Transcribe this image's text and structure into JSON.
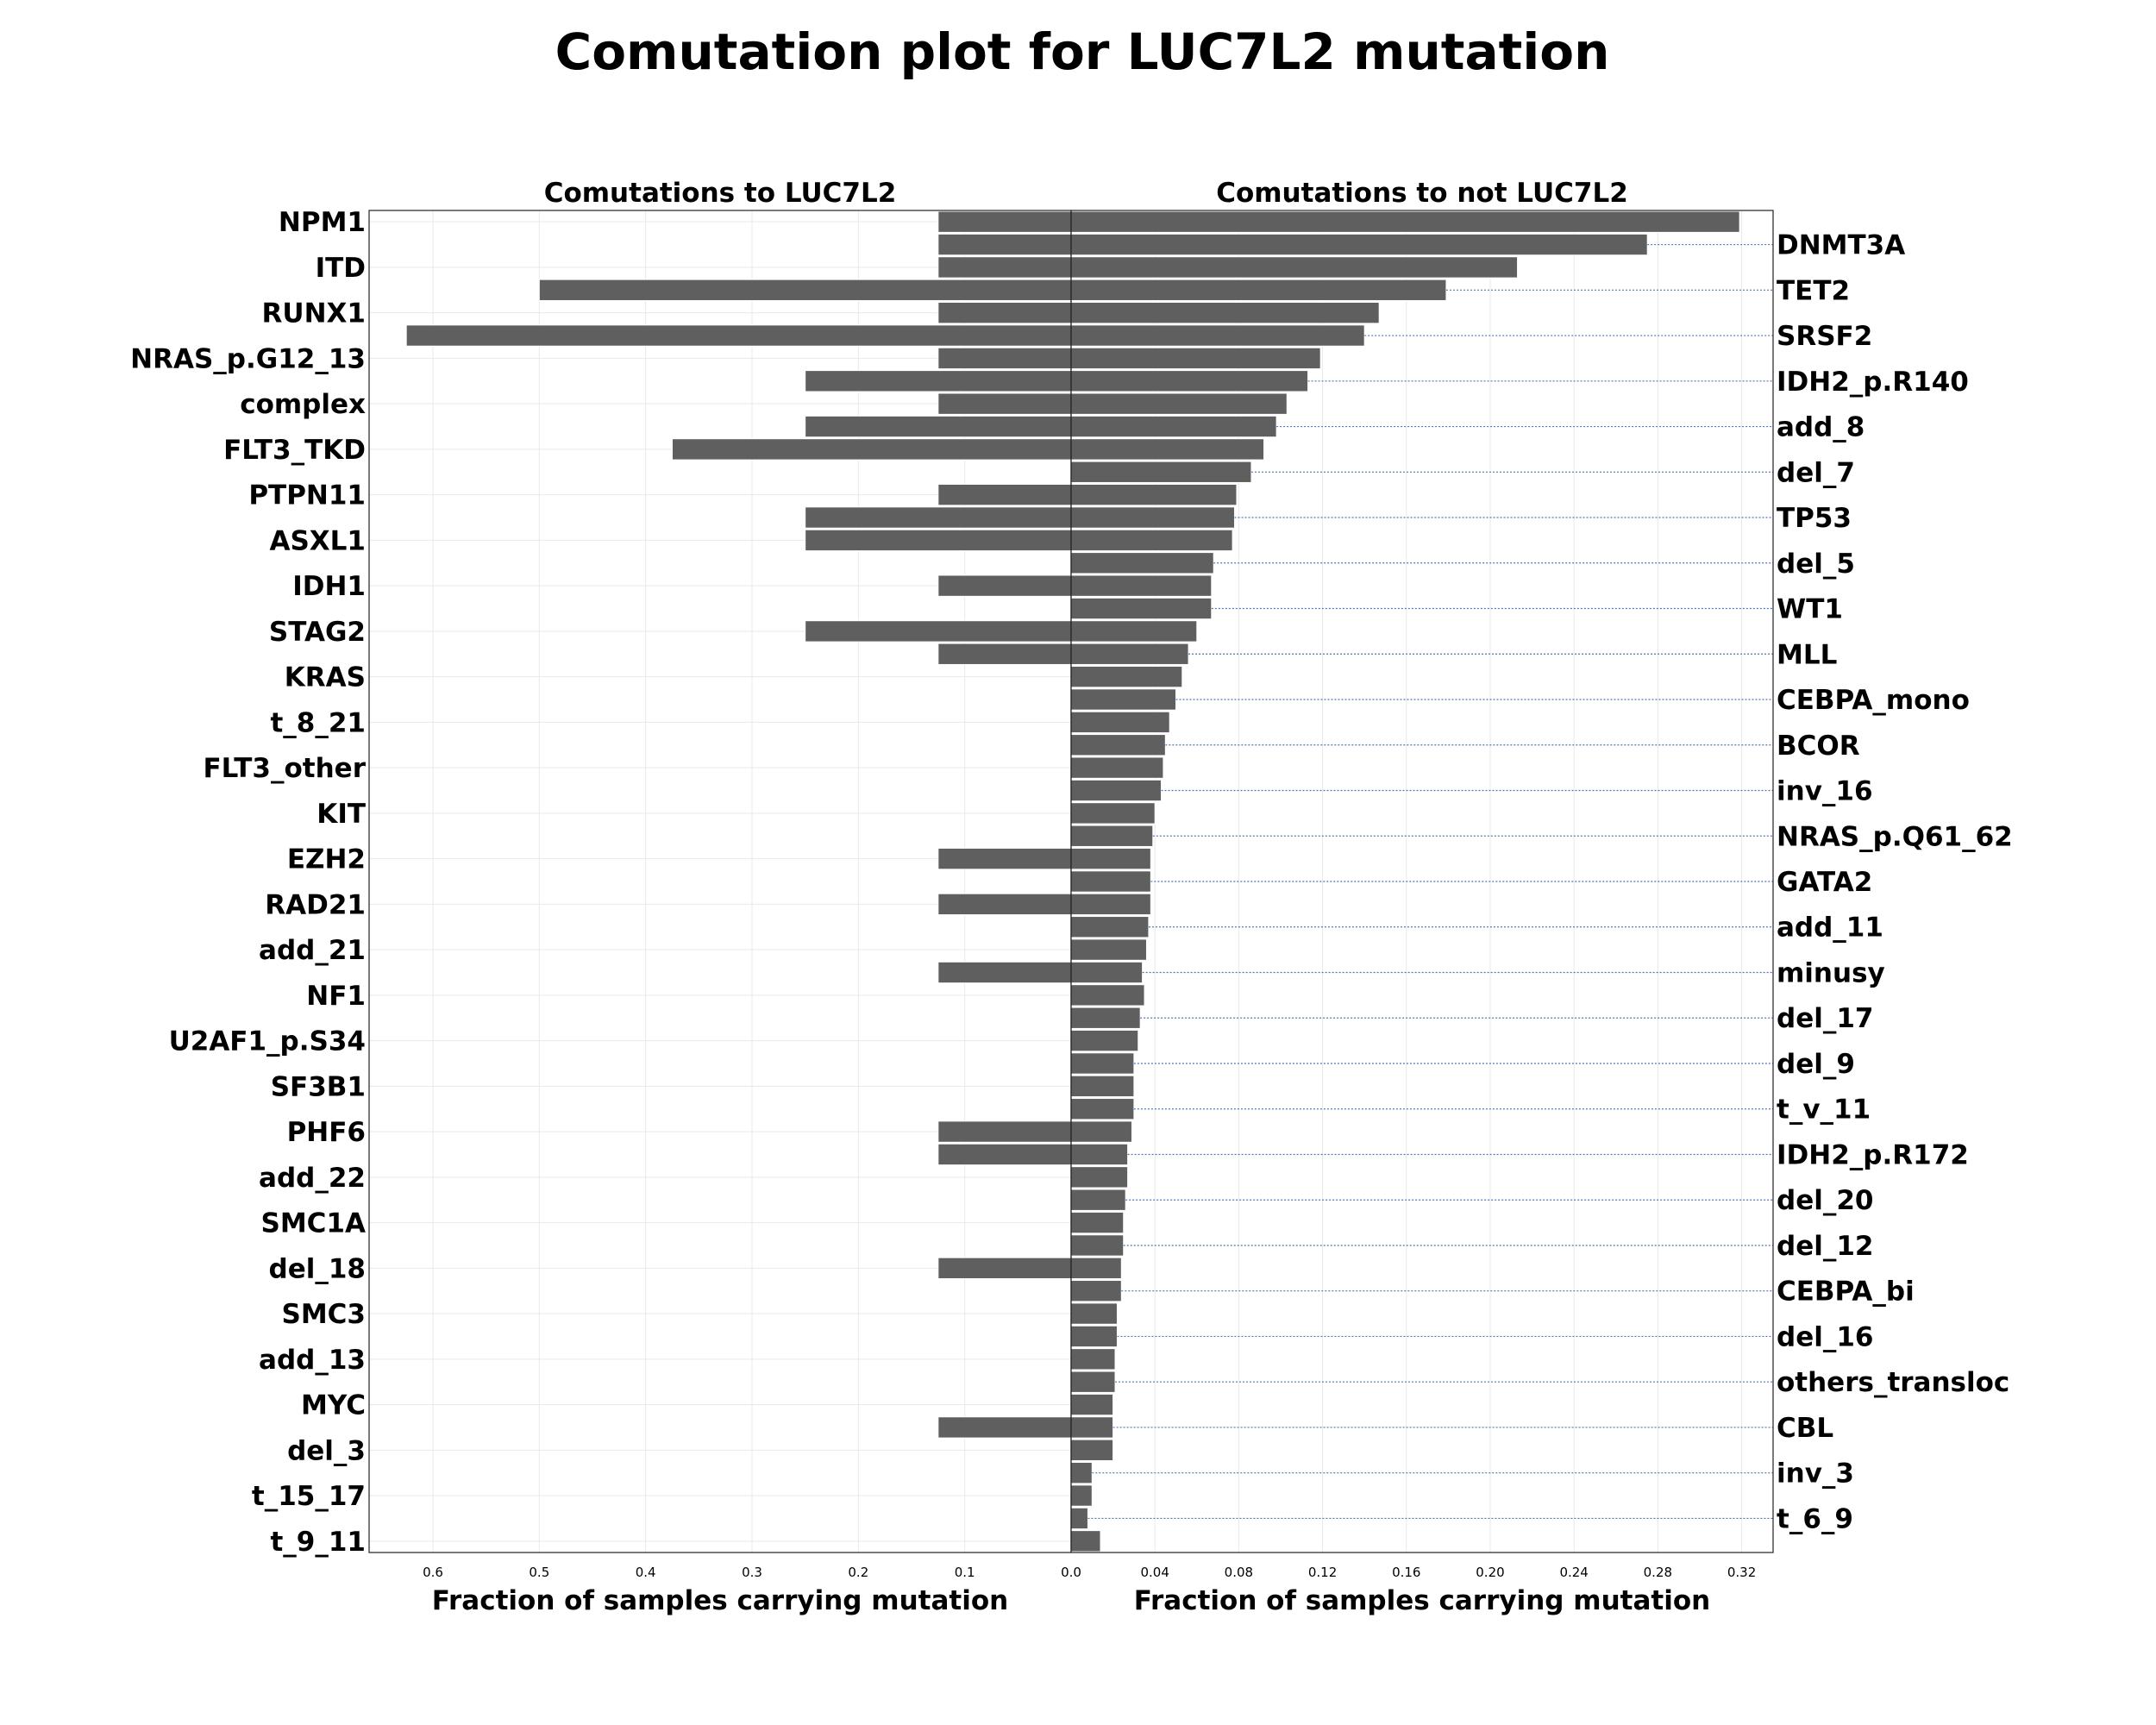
{
  "title": "Comutation plot for LUC7L2 mutation",
  "chart_data": {
    "type": "bar",
    "layout": "back-to-back horizontal bars",
    "categories": [
      "NPM1",
      "DNMT3A",
      "ITD",
      "TET2",
      "RUNX1",
      "SRSF2",
      "NRAS_p.G12_13",
      "IDH2_p.R140",
      "complex",
      "add_8",
      "FLT3_TKD",
      "del_7",
      "PTPN11",
      "TP53",
      "ASXL1",
      "del_5",
      "IDH1",
      "WT1",
      "STAG2",
      "MLL",
      "KRAS",
      "CEBPA_mono",
      "t_8_21",
      "BCOR",
      "FLT3_other",
      "inv_16",
      "KIT",
      "NRAS_p.Q61_62",
      "EZH2",
      "GATA2",
      "RAD21",
      "add_11",
      "add_21",
      "minusy",
      "NF1",
      "del_17",
      "U2AF1_p.S34",
      "del_9",
      "SF3B1",
      "t_v_11",
      "PHF6",
      "IDH2_p.R172",
      "add_22",
      "del_20",
      "SMC1A",
      "del_12",
      "del_18",
      "CEBPA_bi",
      "SMC3",
      "del_16",
      "add_13",
      "others_transloc",
      "MYC",
      "CBL",
      "del_3",
      "inv_3",
      "t_15_17",
      "t_6_9",
      "t_9_11"
    ],
    "left_labels": [
      "NPM1",
      "ITD",
      "RUNX1",
      "NRAS_p.G12_13",
      "complex",
      "FLT3_TKD",
      "PTPN11",
      "ASXL1",
      "IDH1",
      "STAG2",
      "KRAS",
      "t_8_21",
      "FLT3_other",
      "KIT",
      "EZH2",
      "RAD21",
      "add_21",
      "NF1",
      "U2AF1_p.S34",
      "SF3B1",
      "PHF6",
      "add_22",
      "SMC1A",
      "del_18",
      "SMC3",
      "add_13",
      "MYC",
      "del_3",
      "t_15_17",
      "t_9_11"
    ],
    "right_labels": [
      "DNMT3A",
      "TET2",
      "SRSF2",
      "IDH2_p.R140",
      "add_8",
      "del_7",
      "TP53",
      "del_5",
      "WT1",
      "MLL",
      "CEBPA_mono",
      "BCOR",
      "inv_16",
      "NRAS_p.Q61_62",
      "GATA2",
      "add_11",
      "minusy",
      "del_17",
      "del_9",
      "t_v_11",
      "IDH2_p.R172",
      "del_20",
      "del_12",
      "CEBPA_bi",
      "del_16",
      "others_transloc",
      "CBL",
      "inv_3",
      "t_6_9"
    ],
    "series": [
      {
        "panel": "left",
        "title": "Comutations to LUC7L2",
        "xlabel": "Fraction of samples carrying mutation",
        "xlim": [
          0.66,
          0
        ],
        "xticks": [
          "0.6",
          "0.5",
          "0.4",
          "0.3",
          "0.2",
          "0.1",
          "0.0"
        ],
        "values": [
          0.125,
          0.125,
          0.125,
          0.5,
          0.125,
          0.625,
          0.125,
          0.25,
          0.125,
          0.25,
          0.375,
          0,
          0.125,
          0.25,
          0.25,
          0,
          0.125,
          0,
          0.25,
          0.125,
          0,
          0,
          0,
          0,
          0,
          0,
          0,
          0,
          0.125,
          0,
          0.125,
          0,
          0,
          0.125,
          0,
          0,
          0,
          0,
          0,
          0,
          0.125,
          0.125,
          0,
          0,
          0,
          0,
          0.125,
          0,
          0,
          0,
          0,
          0,
          0,
          0.125,
          0,
          0,
          0,
          0,
          0
        ]
      },
      {
        "panel": "right",
        "title": "Comutations to not LUC7L2",
        "xlabel": "Fraction of samples carrying mutation",
        "xlim": [
          0,
          0.335
        ],
        "xticks": [
          "0.0",
          "0.04",
          "0.08",
          "0.12",
          "0.16",
          "0.20",
          "0.24",
          "0.28",
          "0.32"
        ],
        "values": [
          0.319,
          0.275,
          0.213,
          0.179,
          0.147,
          0.14,
          0.119,
          0.113,
          0.103,
          0.098,
          0.092,
          0.086,
          0.079,
          0.078,
          0.077,
          0.068,
          0.067,
          0.067,
          0.06,
          0.056,
          0.053,
          0.05,
          0.047,
          0.045,
          0.044,
          0.043,
          0.04,
          0.039,
          0.038,
          0.038,
          0.038,
          0.037,
          0.036,
          0.034,
          0.035,
          0.033,
          0.032,
          0.03,
          0.03,
          0.03,
          0.029,
          0.027,
          0.027,
          0.026,
          0.025,
          0.025,
          0.024,
          0.024,
          0.022,
          0.022,
          0.021,
          0.021,
          0.02,
          0.02,
          0.02,
          0.01,
          0.01,
          0.008,
          0.014
        ]
      }
    ],
    "grid": true
  }
}
